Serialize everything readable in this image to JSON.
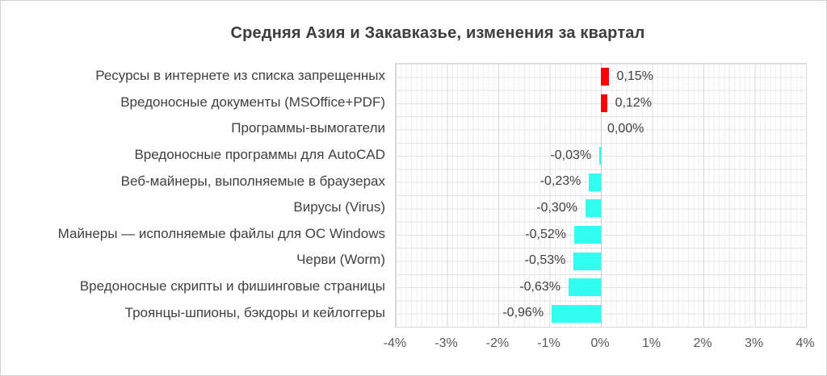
{
  "chart_data": {
    "type": "bar",
    "orientation": "horizontal",
    "title": "Средняя Азия и Закавказье, изменения за квартал",
    "xlim": [
      -4,
      4
    ],
    "x_ticks": [
      "-4%",
      "-3%",
      "-2%",
      "-1%",
      "0%",
      "1%",
      "2%",
      "3%",
      "4%"
    ],
    "grid": "major-vertical, minor-vertical, horizontal",
    "legend": "none",
    "colors": {
      "positive": "#fb0000",
      "negative": "#30fff0"
    },
    "points": [
      {
        "category": "Ресурсы в интернете из списка запрещенных",
        "value": 0.15,
        "label": "0,15%"
      },
      {
        "category": "Вредоносные документы (MSOffice+PDF)",
        "value": 0.12,
        "label": "0,12%"
      },
      {
        "category": "Программы-вымогатели",
        "value": 0.0,
        "label": "0,00%"
      },
      {
        "category": "Вредоносные программы для AutoCAD",
        "value": -0.03,
        "label": "-0,03%"
      },
      {
        "category": "Веб-майнеры, выполняемые в браузерах",
        "value": -0.23,
        "label": "-0,23%"
      },
      {
        "category": "Вирусы (Virus)",
        "value": -0.3,
        "label": "-0,30%"
      },
      {
        "category": "Майнеры — исполняемые файлы для ОС Windows",
        "value": -0.52,
        "label": "-0,52%"
      },
      {
        "category": "Черви (Worm)",
        "value": -0.53,
        "label": "-0,53%"
      },
      {
        "category": "Вредоносные скрипты и фишинговые страницы",
        "value": -0.63,
        "label": "-0,63%"
      },
      {
        "category": "Троянцы-шпионы, бэкдоры и кейлоггеры",
        "value": -0.96,
        "label": "-0,96%"
      }
    ]
  }
}
